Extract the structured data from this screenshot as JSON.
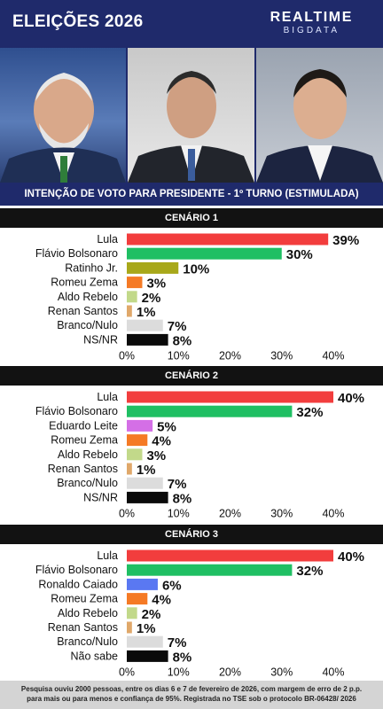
{
  "header": {
    "title": "ELEIÇÕES 2026",
    "brand_top": "REALTIME",
    "brand_bottom": "BIGDATA"
  },
  "photos": [
    {
      "name": "photo-lula"
    },
    {
      "name": "photo-flavio-bolsonaro"
    },
    {
      "name": "photo-ratinho-jr"
    }
  ],
  "subtitle": "INTENÇÃO DE VOTO PARA PRESIDENTE - 1º TURNO (ESTIMULADA)",
  "chart_data": [
    {
      "type": "bar",
      "title": "CENÁRIO 1",
      "categories": [
        "Lula",
        "Flávio Bolsonaro",
        "Ratinho Jr.",
        "Romeu Zema",
        "Aldo Rebelo",
        "Renan Santos",
        "Branco/Nulo",
        "NS/NR"
      ],
      "values": [
        39,
        30,
        10,
        3,
        2,
        1,
        7,
        8
      ],
      "labels": [
        "39%",
        "30%",
        "10%",
        "3%",
        "2%",
        "1%",
        "7%",
        "8%"
      ],
      "colors": [
        "#f23d3d",
        "#1fbf63",
        "#a8a81a",
        "#f57a25",
        "#c2d98a",
        "#e0a86a",
        "#dcdcdc",
        "#0a0a0a"
      ],
      "xticks": [
        "0%",
        "10%",
        "20%",
        "30%",
        "40%"
      ],
      "xlim": [
        0,
        40
      ]
    },
    {
      "type": "bar",
      "title": "CENÁRIO 2",
      "categories": [
        "Lula",
        "Flávio Bolsonaro",
        "Eduardo Leite",
        "Romeu Zema",
        "Aldo Rebelo",
        "Renan Santos",
        "Branco/Nulo",
        "NS/NR"
      ],
      "values": [
        40,
        32,
        5,
        4,
        3,
        1,
        7,
        8
      ],
      "labels": [
        "40%",
        "32%",
        "5%",
        "4%",
        "3%",
        "1%",
        "7%",
        "8%"
      ],
      "colors": [
        "#f23d3d",
        "#1fbf63",
        "#d46fe6",
        "#f57a25",
        "#c2d98a",
        "#e0a86a",
        "#dcdcdc",
        "#0a0a0a"
      ],
      "xticks": [
        "0%",
        "10%",
        "20%",
        "30%",
        "40%"
      ],
      "xlim": [
        0,
        40
      ]
    },
    {
      "type": "bar",
      "title": "CENÁRIO 3",
      "categories": [
        "Lula",
        "Flávio Bolsonaro",
        "Ronaldo Caiado",
        "Romeu Zema",
        "Aldo Rebelo",
        "Renan Santos",
        "Branco/Nulo",
        "Não sabe"
      ],
      "values": [
        40,
        32,
        6,
        4,
        2,
        1,
        7,
        8
      ],
      "labels": [
        "40%",
        "32%",
        "6%",
        "4%",
        "2%",
        "1%",
        "7%",
        "8%"
      ],
      "colors": [
        "#f23d3d",
        "#1fbf63",
        "#5a78f2",
        "#f57a25",
        "#c2d98a",
        "#e0a86a",
        "#dcdcdc",
        "#0a0a0a"
      ],
      "xticks": [
        "0%",
        "10%",
        "20%",
        "30%",
        "40%"
      ],
      "xlim": [
        0,
        40
      ]
    }
  ],
  "footer": {
    "line1": "Pesquisa ouviu 2000 pessoas, entre os dias 6 e 7 de fevereiro de 2026, com margem de erro de 2 p.p.",
    "line2": "para mais ou para menos e confiança de 95%. Registrada no TSE sob o protocolo  BR-06428/ 2026"
  }
}
